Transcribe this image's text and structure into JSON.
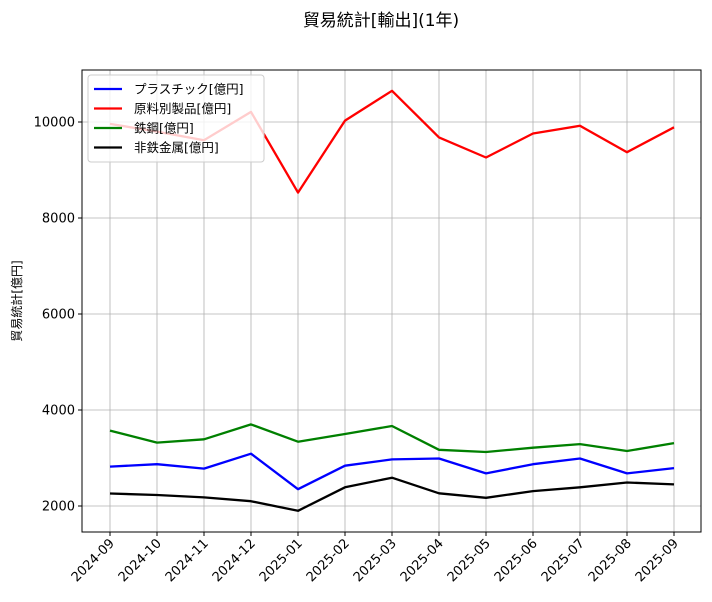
{
  "chart_data": {
    "type": "line",
    "title": "貿易統計[輸出](1年)",
    "xlabel": "",
    "ylabel": "貿易統計[億円]",
    "categories": [
      "2024-09",
      "2024-10",
      "2024-11",
      "2024-12",
      "2025-01",
      "2025-02",
      "2025-03",
      "2025-04",
      "2025-05",
      "2025-06",
      "2025-07",
      "2025-08",
      "2025-09"
    ],
    "yticks": [
      2000,
      4000,
      6000,
      8000,
      10000
    ],
    "ylim": [
      1480,
      11080
    ],
    "grid": true,
    "legend_position": "upper left",
    "series": [
      {
        "name": "プラスチック[億円]",
        "color": "#0000ff",
        "values": [
          2820,
          2870,
          2780,
          3090,
          2350,
          2840,
          2970,
          2990,
          2680,
          2870,
          2990,
          2680,
          2790
        ]
      },
      {
        "name": "原料別製品[億円]",
        "color": "#ff0000",
        "values": [
          9960,
          9800,
          9620,
          10210,
          8530,
          10030,
          10650,
          9680,
          9260,
          9760,
          9920,
          9370,
          9890
        ]
      },
      {
        "name": "鉄鋼[億円]",
        "color": "#008000",
        "values": [
          3570,
          3320,
          3390,
          3700,
          3340,
          3500,
          3667,
          3170,
          3125,
          3215,
          3290,
          3145,
          3310
        ]
      },
      {
        "name": "非鉄金属[億円]",
        "color": "#000000",
        "values": [
          2260,
          2230,
          2180,
          2100,
          1900,
          2390,
          2590,
          2265,
          2170,
          2310,
          2390,
          2490,
          2450
        ]
      }
    ]
  }
}
